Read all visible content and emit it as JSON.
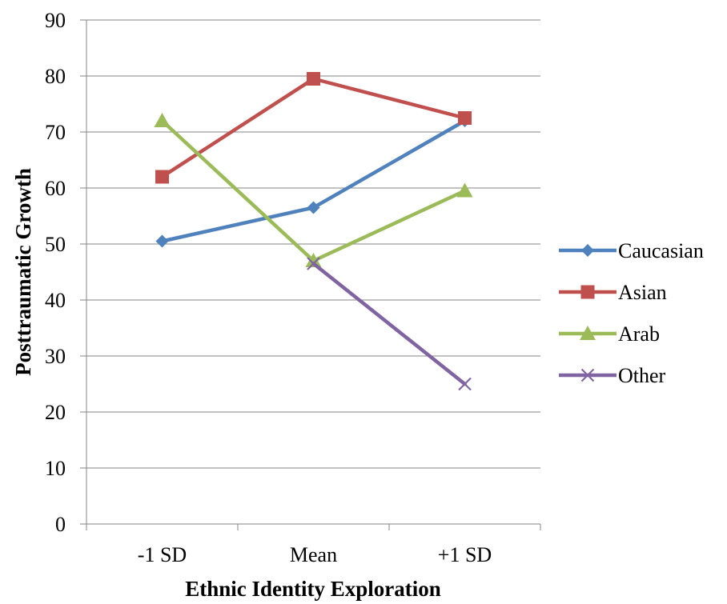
{
  "chart_data": {
    "type": "line",
    "xlabel": "Ethnic Identity Exploration",
    "ylabel": "Posttraumatic Growth",
    "categories": [
      "-1 SD",
      "Mean",
      "+1 SD"
    ],
    "ylim": [
      0,
      90
    ],
    "yticks": [
      0,
      10,
      20,
      30,
      40,
      50,
      60,
      70,
      80,
      90
    ],
    "grid": true,
    "legend_position": "right",
    "series": [
      {
        "name": "Caucasian",
        "values": [
          50.5,
          56.5,
          72
        ],
        "color": "#4f81bd",
        "marker": "diamond"
      },
      {
        "name": "Asian",
        "values": [
          62,
          79.5,
          72.5
        ],
        "color": "#c0504d",
        "marker": "square"
      },
      {
        "name": "Arab",
        "values": [
          72,
          47,
          59.5
        ],
        "color": "#9bbb59",
        "marker": "triangle"
      },
      {
        "name": "Other",
        "values": [
          null,
          46.5,
          25
        ],
        "color": "#8064a2",
        "marker": "x"
      }
    ]
  }
}
